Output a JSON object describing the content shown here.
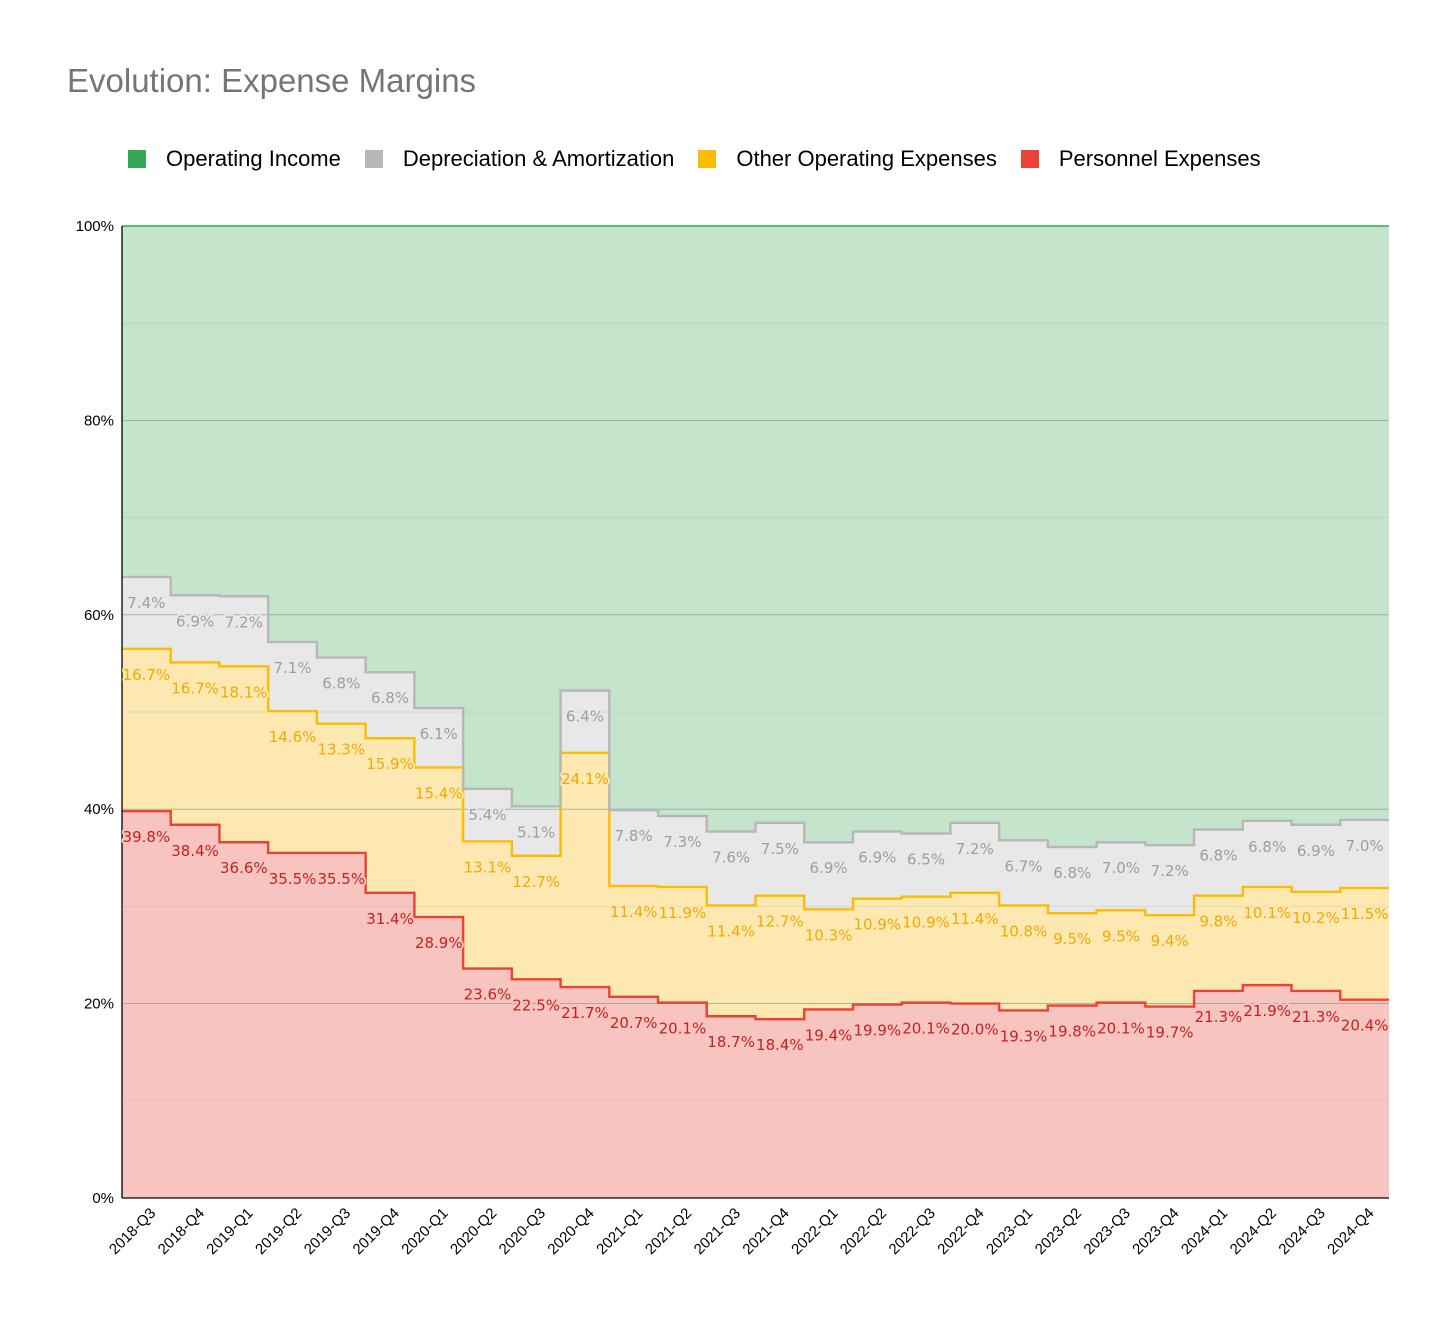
{
  "chart_data": {
    "type": "area",
    "stacked": true,
    "step": true,
    "title": "Evolution: Expense Margins",
    "xlabel": "",
    "ylabel": "",
    "ylim": [
      0,
      100
    ],
    "yticks": [
      "0%",
      "20%",
      "40%",
      "60%",
      "80%",
      "100%"
    ],
    "legend_position": "top",
    "grid": true,
    "categories": [
      "2018-Q3",
      "2018-Q4",
      "2019-Q1",
      "2019-Q2",
      "2019-Q3",
      "2019-Q4",
      "2020-Q1",
      "2020-Q2",
      "2020-Q3",
      "2020-Q4",
      "2021-Q1",
      "2021-Q2",
      "2021-Q3",
      "2021-Q4",
      "2022-Q1",
      "2022-Q2",
      "2022-Q3",
      "2022-Q4",
      "2023-Q1",
      "2023-Q2",
      "2023-Q3",
      "2023-Q4",
      "2024-Q1",
      "2024-Q2",
      "2024-Q3",
      "2024-Q4"
    ],
    "series": [
      {
        "name": "Personnel Expenses",
        "color": "#ea4335",
        "fill": "#f8c4bf",
        "values": [
          39.8,
          38.4,
          36.6,
          35.5,
          35.5,
          31.4,
          28.9,
          23.6,
          22.5,
          21.7,
          20.7,
          20.1,
          18.7,
          18.4,
          19.4,
          19.9,
          20.1,
          20.0,
          19.3,
          19.8,
          20.1,
          19.7,
          21.3,
          21.9,
          21.3,
          20.4
        ],
        "labels": [
          "39.8%",
          "38.4%",
          "36.6%",
          "35.5%",
          "35.5%",
          "31.4%",
          "28.9%",
          "23.6%",
          "22.5%",
          "21.7%",
          "20.7%",
          "20.1%",
          "18.7%",
          "18.4%",
          "19.4%",
          "19.9%",
          "20.1%",
          "20.0%",
          "19.3%",
          "19.8%",
          "20.1%",
          "19.7%",
          "21.3%",
          "21.9%",
          "21.3%",
          "20.4%"
        ]
      },
      {
        "name": "Other Operating Expenses",
        "color": "#fbbc04",
        "fill": "#fde8b2",
        "values": [
          16.7,
          16.7,
          18.1,
          14.6,
          13.3,
          15.9,
          15.4,
          13.1,
          12.7,
          24.1,
          11.4,
          11.9,
          11.4,
          12.7,
          10.3,
          10.9,
          10.9,
          11.4,
          10.8,
          9.5,
          9.5,
          9.4,
          9.8,
          10.1,
          10.2,
          11.5
        ],
        "labels": [
          "16.7%",
          "16.7%",
          "18.1%",
          "14.6%",
          "13.3%",
          "15.9%",
          "15.4%",
          "13.1%",
          "12.7%",
          "24.1%",
          "11.4%",
          "11.9%",
          "11.4%",
          "12.7%",
          "10.3%",
          "10.9%",
          "10.9%",
          "11.4%",
          "10.8%",
          "9.5%",
          "9.5%",
          "9.4%",
          "9.8%",
          "10.1%",
          "10.2%",
          "11.5%"
        ]
      },
      {
        "name": "Depreciation & Amortization",
        "color": "#b7b7b7",
        "fill": "#e8e8e8",
        "values": [
          7.4,
          6.9,
          7.2,
          7.1,
          6.8,
          6.8,
          6.1,
          5.4,
          5.1,
          6.4,
          7.8,
          7.3,
          7.6,
          7.5,
          6.9,
          6.9,
          6.5,
          7.2,
          6.7,
          6.8,
          7.0,
          7.2,
          6.8,
          6.8,
          6.9,
          7.0
        ],
        "labels": [
          "7.4%",
          "6.9%",
          "7.2%",
          "7.1%",
          "6.8%",
          "6.8%",
          "6.1%",
          "5.4%",
          "5.1%",
          "6.4%",
          "7.8%",
          "7.3%",
          "7.6%",
          "7.5%",
          "6.9%",
          "6.9%",
          "6.5%",
          "7.2%",
          "6.7%",
          "6.8%",
          "7.0%",
          "7.2%",
          "6.8%",
          "6.8%",
          "6.9%",
          "7.0%"
        ]
      },
      {
        "name": "Operating Income",
        "color": "#34a853",
        "fill": "#c4e4cb",
        "values": [
          36.1,
          38.0,
          38.1,
          42.8,
          44.4,
          45.9,
          49.6,
          57.9,
          59.7,
          47.8,
          60.1,
          60.7,
          62.3,
          61.4,
          63.4,
          62.3,
          62.5,
          61.4,
          63.2,
          63.9,
          63.4,
          63.7,
          62.1,
          61.2,
          61.6,
          61.1
        ],
        "labels": []
      }
    ],
    "label_colors": {
      "Personnel Expenses": "#c5221f",
      "Other Operating Expenses": "#f2a900",
      "Depreciation & Amortization": "#9e9e9e"
    }
  },
  "legend": [
    {
      "label": "Operating Income",
      "color": "#34a853"
    },
    {
      "label": "Depreciation & Amortization",
      "color": "#b7b7b7"
    },
    {
      "label": "Other Operating Expenses",
      "color": "#fbbc04"
    },
    {
      "label": "Personnel Expenses",
      "color": "#ea4335"
    }
  ]
}
